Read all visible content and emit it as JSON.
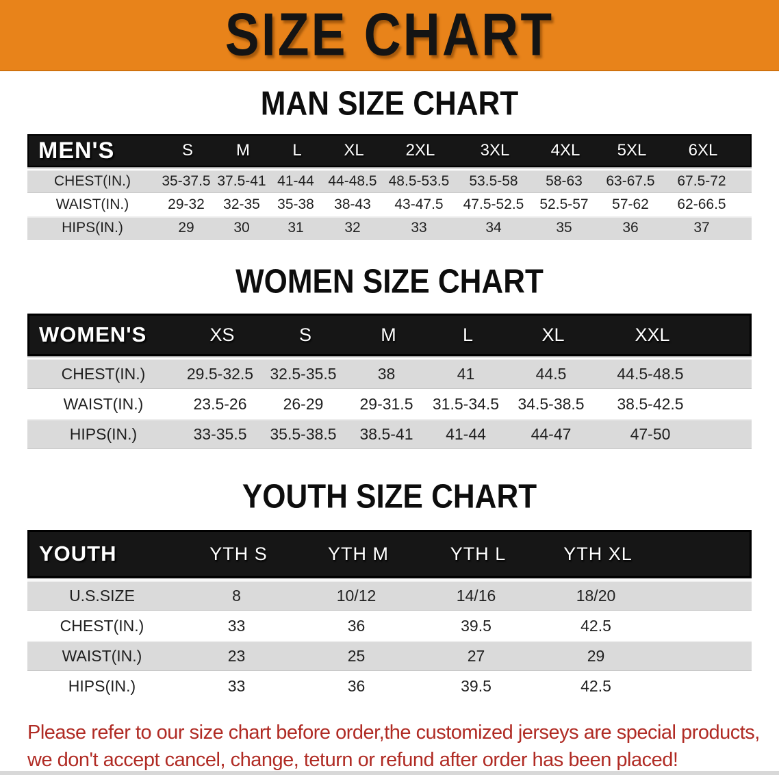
{
  "banner": {
    "title": "SIZE CHART"
  },
  "men": {
    "heading": "MAN SIZE CHART",
    "table": {
      "label": "MEN'S",
      "columns": [
        "S",
        "M",
        "L",
        "XL",
        "2XL",
        "3XL",
        "4XL",
        "5XL",
        "6XL"
      ],
      "rows": [
        {
          "label": "CHEST(IN.)",
          "values": [
            "35-37.5",
            "37.5-41",
            "41-44",
            "44-48.5",
            "48.5-53.5",
            "53.5-58",
            "58-63",
            "63-67.5",
            "67.5-72"
          ]
        },
        {
          "label": "WAIST(IN.)",
          "values": [
            "29-32",
            "32-35",
            "35-38",
            "38-43",
            "43-47.5",
            "47.5-52.5",
            "52.5-57",
            "57-62",
            "62-66.5"
          ]
        },
        {
          "label": "HIPS(IN.)",
          "values": [
            "29",
            "30",
            "31",
            "32",
            "33",
            "34",
            "35",
            "36",
            "37"
          ]
        }
      ]
    }
  },
  "women": {
    "heading": "WOMEN SIZE CHART",
    "table": {
      "label": "WOMEN'S",
      "columns": [
        "XS",
        "S",
        "M",
        "L",
        "XL",
        "XXL"
      ],
      "rows": [
        {
          "label": "CHEST(IN.)",
          "values": [
            "29.5-32.5",
            "32.5-35.5",
            "38",
            "41",
            "44.5",
            "44.5-48.5"
          ]
        },
        {
          "label": "WAIST(IN.)",
          "values": [
            "23.5-26",
            "26-29",
            "29-31.5",
            "31.5-34.5",
            "34.5-38.5",
            "38.5-42.5"
          ]
        },
        {
          "label": "HIPS(IN.)",
          "values": [
            "33-35.5",
            "35.5-38.5",
            "38.5-41",
            "41-44",
            "44-47",
            "47-50"
          ]
        }
      ]
    }
  },
  "youth": {
    "heading": "YOUTH SIZE CHART",
    "table": {
      "label": "YOUTH",
      "columns": [
        "YTH S",
        "YTH M",
        "YTH L",
        "YTH XL"
      ],
      "rows": [
        {
          "label": "U.S.SIZE",
          "values": [
            "8",
            "10/12",
            "14/16",
            "18/20"
          ]
        },
        {
          "label": "CHEST(IN.)",
          "values": [
            "33",
            "36",
            "39.5",
            "42.5"
          ]
        },
        {
          "label": "WAIST(IN.)",
          "values": [
            "23",
            "25",
            "27",
            "29"
          ]
        },
        {
          "label": "HIPS(IN.)",
          "values": [
            "33",
            "36",
            "39.5",
            "42.5"
          ]
        }
      ]
    }
  },
  "disclaimer": {
    "line1": "Please refer to our size chart before order,the customized jerseys are special products,",
    "line2": "we don't accept cancel, change, teturn or refund after order has been placed!"
  },
  "colors": {
    "banner_bg": "#E8831A",
    "header_bar": "#161616",
    "row_gray": "#DADADA",
    "row_white": "#FFFFFF",
    "disclaimer_red": "#B02B24"
  }
}
